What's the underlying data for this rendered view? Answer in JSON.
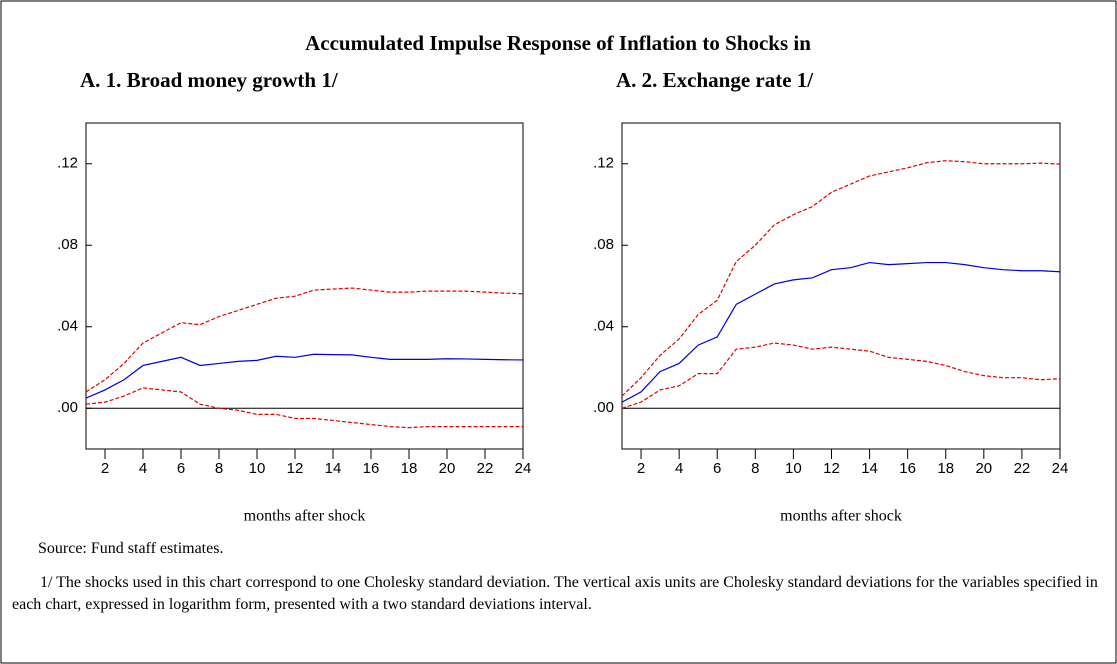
{
  "title": "Accumulated Impulse Response of Inflation to Shocks in",
  "source": "Source: Fund staff estimates.",
  "note": "1/ The shocks used in this chart correspond to one Cholesky standard deviation. The vertical axis units are Cholesky standard deviations for the variables specified in each chart, expressed in logarithm form, presented with a two standard deviations interval.",
  "chart_data": [
    {
      "type": "line",
      "title": "A. 1. Broad money growth 1/",
      "xlabel": "months after shock",
      "x": [
        1,
        2,
        3,
        4,
        5,
        6,
        7,
        8,
        9,
        10,
        11,
        12,
        13,
        14,
        15,
        16,
        17,
        18,
        19,
        20,
        21,
        22,
        23,
        24
      ],
      "xlim": [
        1,
        24
      ],
      "xticks": [
        2,
        4,
        6,
        8,
        10,
        12,
        14,
        16,
        18,
        20,
        22,
        24
      ],
      "ylim": [
        -0.02,
        0.14
      ],
      "yticks": [
        {
          "value": 0,
          "label": ".00"
        },
        {
          "value": 0.04,
          "label": ".04"
        },
        {
          "value": 0.08,
          "label": ".08"
        },
        {
          "value": 0.12,
          "label": ".12"
        }
      ],
      "hline": 0,
      "series": [
        {
          "color": "#e00000",
          "dashed": true,
          "values": [
            0.008,
            0.014,
            0.022,
            0.032,
            0.037,
            0.042,
            0.041,
            0.045,
            0.048,
            0.051,
            0.054,
            0.055,
            0.058,
            0.0585,
            0.059,
            0.058,
            0.057,
            0.057,
            0.0575,
            0.0575,
            0.0575,
            0.057,
            0.0565,
            0.0562
          ]
        },
        {
          "color": "#0000e0",
          "dashed": false,
          "values": [
            0.005,
            0.009,
            0.014,
            0.021,
            0.023,
            0.025,
            0.021,
            0.022,
            0.023,
            0.0235,
            0.0255,
            0.025,
            0.0265,
            0.0263,
            0.0262,
            0.025,
            0.024,
            0.024,
            0.024,
            0.0243,
            0.0242,
            0.024,
            0.0238,
            0.0237
          ]
        },
        {
          "color": "#e00000",
          "dashed": true,
          "values": [
            0.002,
            0.003,
            0.006,
            0.01,
            0.009,
            0.008,
            0.002,
            0.0,
            -0.001,
            -0.003,
            -0.003,
            -0.005,
            -0.005,
            -0.006,
            -0.007,
            -0.008,
            -0.009,
            -0.0095,
            -0.009,
            -0.009,
            -0.009,
            -0.009,
            -0.009,
            -0.009
          ]
        }
      ]
    },
    {
      "type": "line",
      "title": "A. 2. Exchange rate 1/",
      "xlabel": "months after shock",
      "x": [
        1,
        2,
        3,
        4,
        5,
        6,
        7,
        8,
        9,
        10,
        11,
        12,
        13,
        14,
        15,
        16,
        17,
        18,
        19,
        20,
        21,
        22,
        23,
        24
      ],
      "xlim": [
        1,
        24
      ],
      "xticks": [
        2,
        4,
        6,
        8,
        10,
        12,
        14,
        16,
        18,
        20,
        22,
        24
      ],
      "ylim": [
        -0.02,
        0.14
      ],
      "yticks": [
        {
          "value": 0,
          "label": ".00"
        },
        {
          "value": 0.04,
          "label": ".04"
        },
        {
          "value": 0.08,
          "label": ".08"
        },
        {
          "value": 0.12,
          "label": ".12"
        }
      ],
      "hline": 0,
      "series": [
        {
          "color": "#e00000",
          "dashed": true,
          "values": [
            0.006,
            0.015,
            0.026,
            0.034,
            0.046,
            0.053,
            0.072,
            0.08,
            0.09,
            0.095,
            0.099,
            0.106,
            0.11,
            0.114,
            0.116,
            0.118,
            0.1205,
            0.1215,
            0.121,
            0.12,
            0.12,
            0.12,
            0.1203,
            0.1198
          ]
        },
        {
          "color": "#0000e0",
          "dashed": false,
          "values": [
            0.003,
            0.008,
            0.018,
            0.022,
            0.031,
            0.035,
            0.051,
            0.056,
            0.061,
            0.063,
            0.064,
            0.068,
            0.069,
            0.0715,
            0.0705,
            0.071,
            0.0715,
            0.0715,
            0.0705,
            0.069,
            0.068,
            0.0675,
            0.0675,
            0.067
          ]
        },
        {
          "color": "#e00000",
          "dashed": true,
          "values": [
            0.0,
            0.003,
            0.009,
            0.011,
            0.017,
            0.017,
            0.029,
            0.03,
            0.032,
            0.031,
            0.029,
            0.03,
            0.029,
            0.028,
            0.025,
            0.024,
            0.023,
            0.021,
            0.018,
            0.016,
            0.015,
            0.015,
            0.014,
            0.0145
          ]
        }
      ]
    }
  ]
}
